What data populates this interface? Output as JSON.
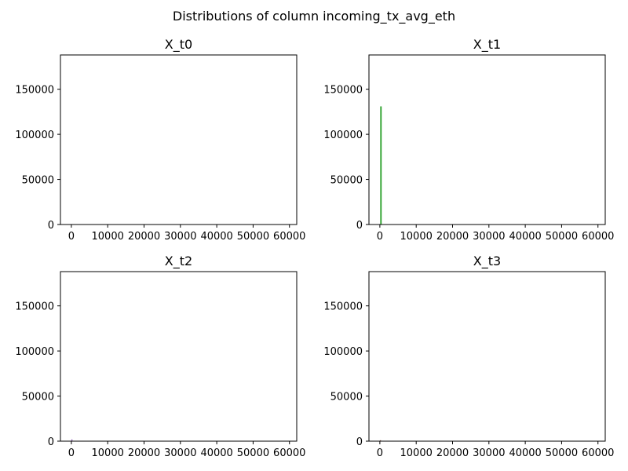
{
  "figure": {
    "suptitle": "Distributions of column incoming_tx_avg_eth"
  },
  "chart_data": [
    {
      "type": "bar",
      "title": "X_t0",
      "xlabel": "",
      "ylabel": "",
      "xlim": [
        -3000,
        62000
      ],
      "ylim": [
        0,
        188000
      ],
      "xticks": [
        0,
        10000,
        20000,
        30000,
        40000,
        50000,
        60000
      ],
      "yticks": [
        0,
        50000,
        100000,
        150000
      ],
      "grid": false,
      "color": "#1f77b4",
      "bins": [
        {
          "x0": 0,
          "x1": 400,
          "count": 0
        }
      ]
    },
    {
      "type": "bar",
      "title": "X_t1",
      "xlabel": "",
      "ylabel": "",
      "xlim": [
        -3000,
        62000
      ],
      "ylim": [
        0,
        188000
      ],
      "xticks": [
        0,
        10000,
        20000,
        30000,
        40000,
        50000,
        60000
      ],
      "yticks": [
        0,
        50000,
        100000,
        150000
      ],
      "grid": false,
      "color": "#2ca02c",
      "bins": [
        {
          "x0": 100,
          "x1": 500,
          "count": 131000
        }
      ]
    },
    {
      "type": "bar",
      "title": "X_t2",
      "xlabel": "",
      "ylabel": "",
      "xlim": [
        -3000,
        62000
      ],
      "ylim": [
        0,
        188000
      ],
      "xticks": [
        0,
        10000,
        20000,
        30000,
        40000,
        50000,
        60000
      ],
      "yticks": [
        0,
        50000,
        100000,
        150000
      ],
      "grid": false,
      "color": "#9467bd",
      "bins": [
        {
          "x0": 0,
          "x1": 300,
          "count": 2000
        }
      ]
    },
    {
      "type": "bar",
      "title": "X_t3",
      "xlabel": "",
      "ylabel": "",
      "xlim": [
        -3000,
        62000
      ],
      "ylim": [
        0,
        188000
      ],
      "xticks": [
        0,
        10000,
        20000,
        30000,
        40000,
        50000,
        60000
      ],
      "yticks": [
        0,
        50000,
        100000,
        150000
      ],
      "grid": false,
      "color": "#8c564b",
      "bins": [
        {
          "x0": 0,
          "x1": 300,
          "count": 1000
        }
      ]
    }
  ]
}
